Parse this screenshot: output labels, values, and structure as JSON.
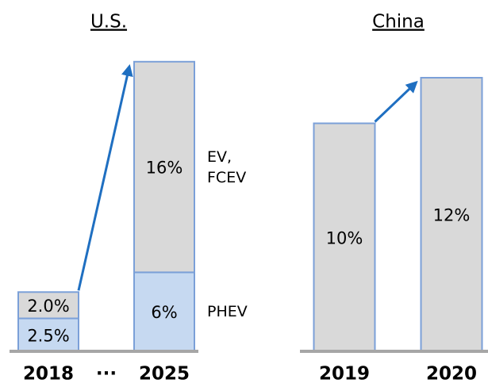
{
  "chart_data": [
    {
      "type": "bar",
      "title": "U.S.",
      "categories": [
        "2018",
        "···",
        "2025"
      ],
      "series": [
        {
          "name": "PHEV",
          "color": "#c6d9f1",
          "values": [
            2.5,
            null,
            6
          ],
          "value_labels": [
            "2.5%",
            null,
            "6%"
          ]
        },
        {
          "name": "EV, FCEV",
          "color": "#d9d9d9",
          "values": [
            2.0,
            null,
            16
          ],
          "value_labels": [
            "2.0%",
            null,
            "16%"
          ]
        }
      ]
    },
    {
      "type": "bar",
      "title": "China",
      "categories": [
        "2019",
        "2020"
      ],
      "color": "#d9d9d9",
      "values": [
        10,
        12
      ],
      "value_labels": [
        "10%",
        "12%"
      ]
    }
  ]
}
